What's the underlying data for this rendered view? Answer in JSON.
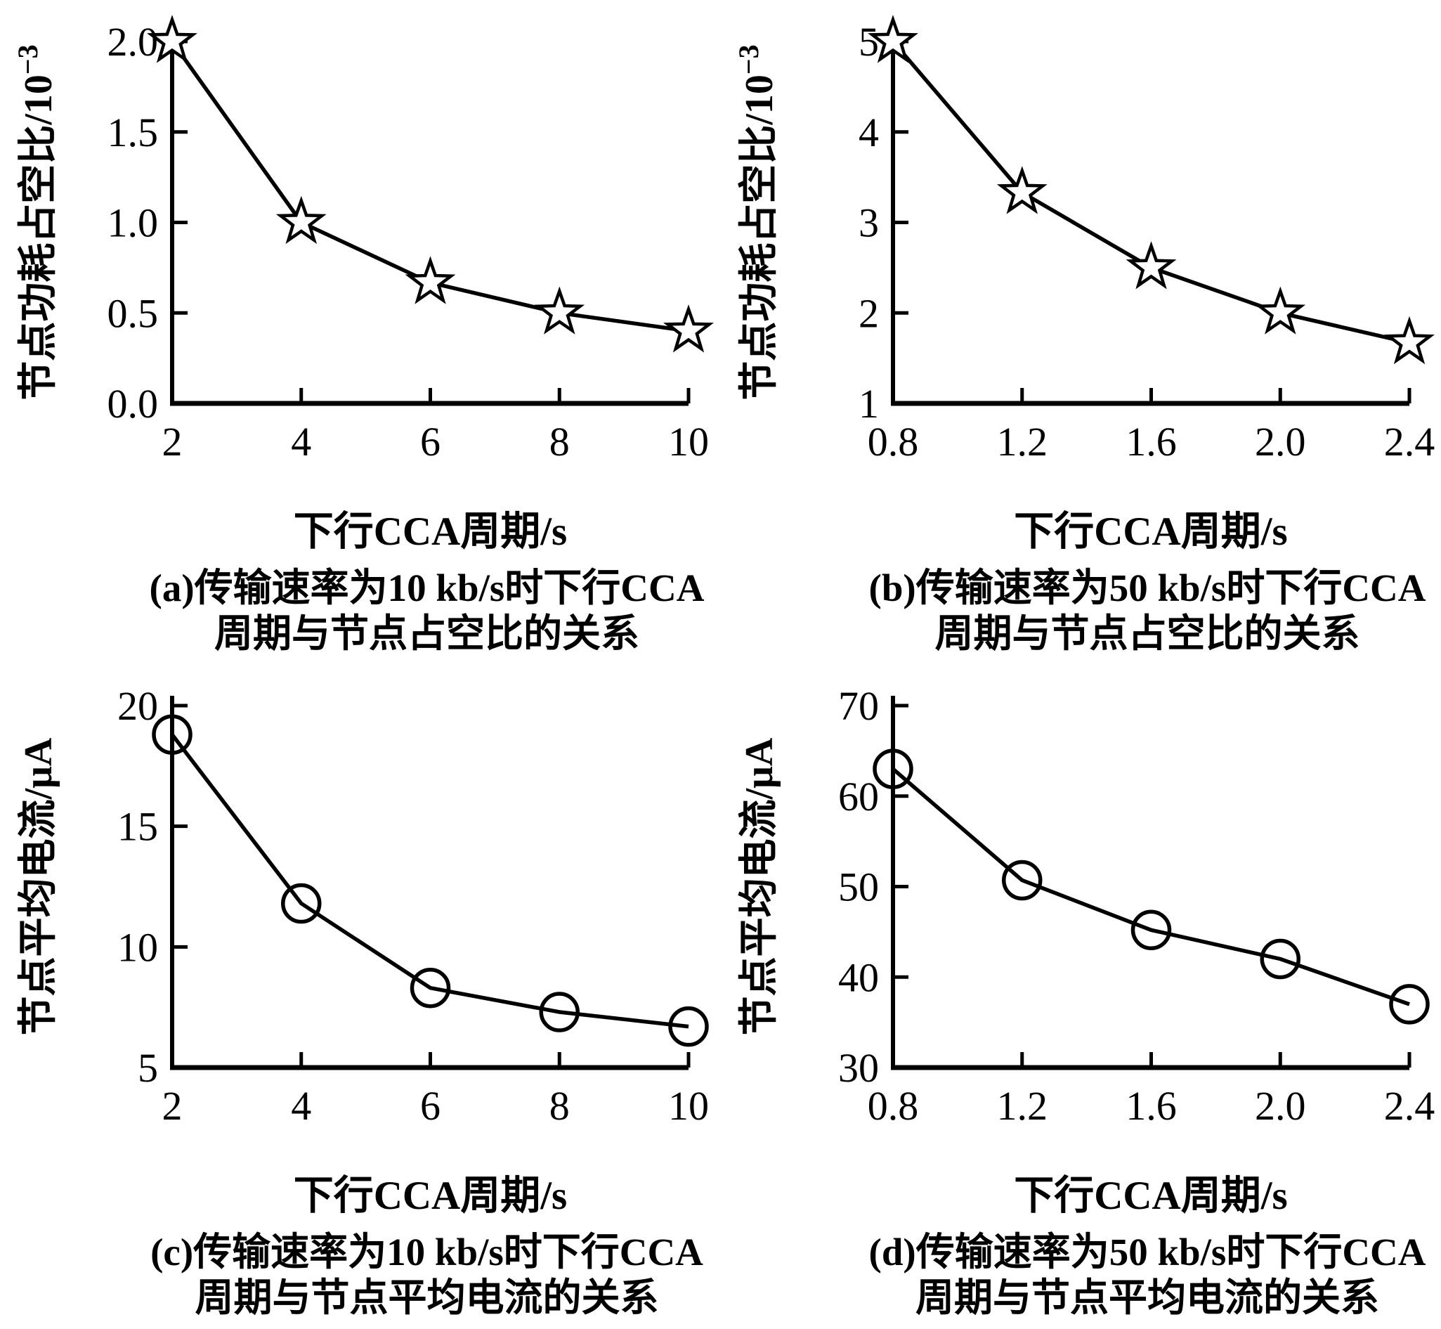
{
  "figure": {
    "background_color": "#ffffff",
    "ink_color": "#000000",
    "layout": "2x2 panel grid",
    "legend": "none",
    "grid_lines": false
  },
  "chart_data": [
    {
      "id": "a",
      "type": "line",
      "marker": "star",
      "x": [
        2,
        4,
        6,
        8,
        10
      ],
      "y": [
        2.0,
        1.0,
        0.667,
        0.5,
        0.4
      ],
      "xlim": [
        2,
        10
      ],
      "ylim": [
        0,
        2
      ],
      "xticks": [
        2,
        4,
        6,
        8,
        10
      ],
      "xtick_labels": [
        "2",
        "4",
        "6",
        "8",
        "10"
      ],
      "yticks": [
        0,
        0.5,
        1,
        1.5,
        2
      ],
      "ytick_labels": [
        "0.0",
        "0.5",
        "1.0",
        "1.5",
        "2.0"
      ],
      "xlabel": "下行CCA周期/s",
      "ylabel_main": "节点功耗占空比/10",
      "ylabel_sup": "−3",
      "caption_line1": "(a)传输速率为10 kb/s时下行CCA",
      "caption_line2": "周期与节点占空比的关系"
    },
    {
      "id": "b",
      "type": "line",
      "marker": "star",
      "x": [
        0.8,
        1.2,
        1.6,
        2.0,
        2.4
      ],
      "y": [
        5.0,
        3.33,
        2.5,
        2.0,
        1.67
      ],
      "xlim": [
        0.8,
        2.4
      ],
      "ylim": [
        1,
        5
      ],
      "xticks": [
        0.8,
        1.2,
        1.6,
        2.0,
        2.4
      ],
      "xtick_labels": [
        "0.8",
        "1.2",
        "1.6",
        "2.0",
        "2.4"
      ],
      "yticks": [
        1,
        2,
        3,
        4,
        5
      ],
      "ytick_labels": [
        "1",
        "2",
        "3",
        "4",
        "5"
      ],
      "xlabel": "下行CCA周期/s",
      "ylabel_main": "节点功耗占空比/10",
      "ylabel_sup": "−3",
      "caption_line1": "(b)传输速率为50 kb/s时下行CCA",
      "caption_line2": "周期与节点占空比的关系"
    },
    {
      "id": "c",
      "type": "line",
      "marker": "circle",
      "x": [
        2,
        4,
        6,
        8,
        10
      ],
      "y": [
        18.8,
        11.8,
        8.3,
        7.3,
        6.7
      ],
      "xlim": [
        2,
        10
      ],
      "ylim": [
        5,
        20
      ],
      "xticks": [
        2,
        4,
        6,
        8,
        10
      ],
      "xtick_labels": [
        "2",
        "4",
        "6",
        "8",
        "10"
      ],
      "yticks": [
        5,
        10,
        15,
        20
      ],
      "ytick_labels": [
        "5",
        "10",
        "15",
        "20"
      ],
      "xlabel": "下行CCA周期/s",
      "ylabel_main": "节点平均电流/μA",
      "ylabel_sup": "",
      "caption_line1": "(c)传输速率为10 kb/s时下行CCA",
      "caption_line2": "周期与节点平均电流的关系"
    },
    {
      "id": "d",
      "type": "line",
      "marker": "circle",
      "x": [
        0.8,
        1.2,
        1.6,
        2.0,
        2.4
      ],
      "y": [
        63,
        50.7,
        45.2,
        42,
        37
      ],
      "xlim": [
        0.8,
        2.4
      ],
      "ylim": [
        30,
        70
      ],
      "xticks": [
        0.8,
        1.2,
        1.6,
        2.0,
        2.4
      ],
      "xtick_labels": [
        "0.8",
        "1.2",
        "1.6",
        "2.0",
        "2.4"
      ],
      "yticks": [
        30,
        40,
        50,
        60,
        70
      ],
      "ytick_labels": [
        "30",
        "40",
        "50",
        "60",
        "70"
      ],
      "xlabel": "下行CCA周期/s",
      "ylabel_main": "节点平均电流/μA",
      "ylabel_sup": "",
      "caption_line1": "(d)传输速率为50 kb/s时下行CCA",
      "caption_line2": "周期与节点平均电流的关系"
    }
  ]
}
